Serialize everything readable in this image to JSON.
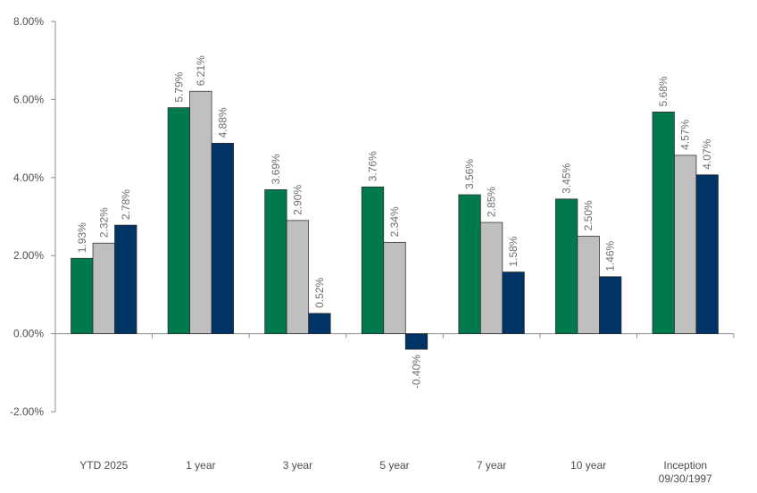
{
  "chart_data": {
    "type": "bar",
    "categories": [
      "YTD 2025",
      "1 year",
      "3 year",
      "5 year",
      "7 year",
      "10 year",
      "Inception\n09/30/1997"
    ],
    "series": [
      {
        "values": [
          1.93,
          5.79,
          3.69,
          3.76,
          3.56,
          3.45,
          5.68
        ],
        "labels": [
          "1.93%",
          "5.79%",
          "3.69%",
          "3.76%",
          "3.56%",
          "3.45%",
          "5.68%"
        ],
        "color": "#007a4d"
      },
      {
        "values": [
          2.32,
          6.21,
          2.9,
          2.34,
          2.85,
          2.5,
          4.57
        ],
        "labels": [
          "2.32%",
          "6.21%",
          "2.90%",
          "2.34%",
          "2.85%",
          "2.50%",
          "4.57%"
        ],
        "color": "#bfbfbf"
      },
      {
        "values": [
          2.78,
          4.88,
          0.52,
          -0.4,
          1.58,
          1.46,
          4.07
        ],
        "labels": [
          "2.78%",
          "4.88%",
          "0.52%",
          "-0.40%",
          "1.58%",
          "1.46%",
          "4.07%"
        ],
        "color": "#003366"
      }
    ],
    "yticks": [
      {
        "value": 8,
        "label": "8.00%"
      },
      {
        "value": 6,
        "label": "6.00%"
      },
      {
        "value": 4,
        "label": "4.00%"
      },
      {
        "value": 2,
        "label": "2.00%"
      },
      {
        "value": 0,
        "label": "0.00%"
      },
      {
        "value": -2,
        "label": "-2.00%"
      }
    ],
    "ylim": [
      -2,
      8
    ],
    "grid": false,
    "legend": "none"
  }
}
